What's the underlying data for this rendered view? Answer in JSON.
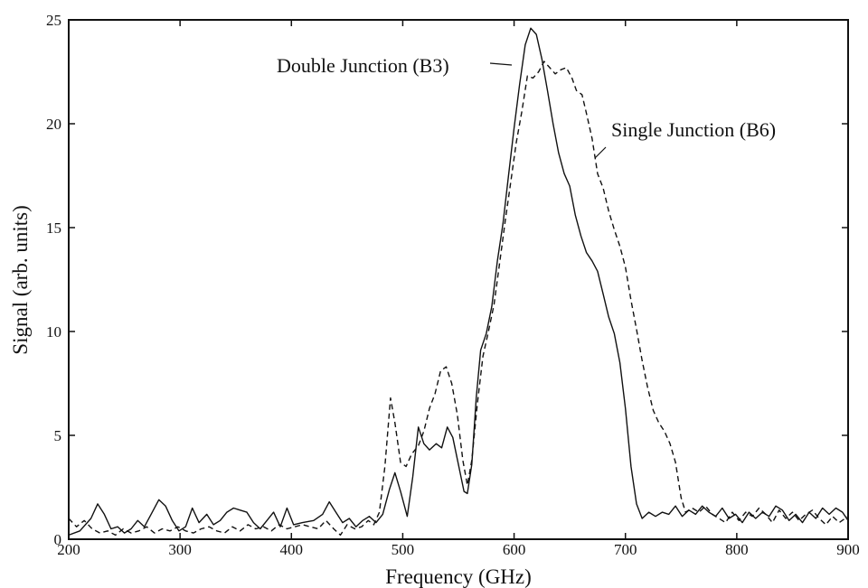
{
  "chart_data": {
    "type": "line",
    "xlabel": "Frequency (GHz)",
    "ylabel": "Signal (arb. units)",
    "xlim": [
      200,
      900
    ],
    "ylim": [
      0,
      25
    ],
    "xticks": [
      200,
      300,
      400,
      500,
      600,
      700,
      800,
      900
    ],
    "yticks": [
      0,
      5,
      10,
      15,
      20,
      25
    ],
    "grid": false,
    "legend": "none",
    "annotations": [
      {
        "text": "Double Junction (B3)",
        "series": 0
      },
      {
        "text": "Single Junction (B6)",
        "series": 1
      }
    ],
    "series": [
      {
        "name": "Double Junction (B3)",
        "style": "solid",
        "color": "#111111",
        "points": [
          [
            200,
            0.2
          ],
          [
            210,
            0.4
          ],
          [
            220,
            1.0
          ],
          [
            226,
            1.7
          ],
          [
            232,
            1.2
          ],
          [
            238,
            0.5
          ],
          [
            244,
            0.6
          ],
          [
            250,
            0.3
          ],
          [
            256,
            0.5
          ],
          [
            262,
            0.9
          ],
          [
            268,
            0.6
          ],
          [
            274,
            1.2
          ],
          [
            281,
            1.9
          ],
          [
            287,
            1.6
          ],
          [
            293,
            0.9
          ],
          [
            299,
            0.4
          ],
          [
            305,
            0.6
          ],
          [
            311,
            1.5
          ],
          [
            317,
            0.8
          ],
          [
            324,
            1.2
          ],
          [
            330,
            0.7
          ],
          [
            336,
            0.9
          ],
          [
            342,
            1.3
          ],
          [
            348,
            1.5
          ],
          [
            354,
            1.4
          ],
          [
            360,
            1.3
          ],
          [
            366,
            0.8
          ],
          [
            372,
            0.5
          ],
          [
            378,
            0.9
          ],
          [
            384,
            1.3
          ],
          [
            390,
            0.6
          ],
          [
            396,
            1.5
          ],
          [
            402,
            0.7
          ],
          [
            410,
            0.8
          ],
          [
            420,
            0.9
          ],
          [
            428,
            1.2
          ],
          [
            434,
            1.8
          ],
          [
            440,
            1.3
          ],
          [
            446,
            0.8
          ],
          [
            452,
            1.0
          ],
          [
            458,
            0.6
          ],
          [
            464,
            0.9
          ],
          [
            470,
            1.1
          ],
          [
            476,
            0.8
          ],
          [
            482,
            1.2
          ],
          [
            488,
            2.4
          ],
          [
            493,
            3.2
          ],
          [
            498,
            2.3
          ],
          [
            504,
            1.1
          ],
          [
            509,
            3.0
          ],
          [
            514,
            5.4
          ],
          [
            519,
            4.6
          ],
          [
            524,
            4.3
          ],
          [
            530,
            4.6
          ],
          [
            535,
            4.4
          ],
          [
            540,
            5.4
          ],
          [
            545,
            4.9
          ],
          [
            550,
            3.6
          ],
          [
            555,
            2.3
          ],
          [
            558,
            2.2
          ],
          [
            562,
            3.6
          ],
          [
            566,
            6.8
          ],
          [
            570,
            9.1
          ],
          [
            575,
            9.9
          ],
          [
            580,
            11.2
          ],
          [
            585,
            13.4
          ],
          [
            590,
            15.2
          ],
          [
            595,
            17.5
          ],
          [
            600,
            19.8
          ],
          [
            605,
            21.9
          ],
          [
            610,
            23.8
          ],
          [
            615,
            24.6
          ],
          [
            620,
            24.3
          ],
          [
            625,
            23.1
          ],
          [
            630,
            21.6
          ],
          [
            635,
            20.0
          ],
          [
            640,
            18.6
          ],
          [
            645,
            17.6
          ],
          [
            650,
            17.0
          ],
          [
            655,
            15.6
          ],
          [
            660,
            14.6
          ],
          [
            665,
            13.8
          ],
          [
            670,
            13.4
          ],
          [
            675,
            12.9
          ],
          [
            680,
            11.8
          ],
          [
            685,
            10.7
          ],
          [
            690,
            9.9
          ],
          [
            695,
            8.5
          ],
          [
            700,
            6.3
          ],
          [
            705,
            3.5
          ],
          [
            710,
            1.7
          ],
          [
            715,
            1.0
          ],
          [
            721,
            1.3
          ],
          [
            727,
            1.1
          ],
          [
            733,
            1.3
          ],
          [
            739,
            1.2
          ],
          [
            745,
            1.6
          ],
          [
            751,
            1.1
          ],
          [
            757,
            1.4
          ],
          [
            763,
            1.2
          ],
          [
            769,
            1.6
          ],
          [
            775,
            1.3
          ],
          [
            781,
            1.1
          ],
          [
            787,
            1.5
          ],
          [
            793,
            1.0
          ],
          [
            799,
            1.2
          ],
          [
            805,
            0.8
          ],
          [
            811,
            1.3
          ],
          [
            817,
            1.0
          ],
          [
            823,
            1.3
          ],
          [
            829,
            1.1
          ],
          [
            835,
            1.6
          ],
          [
            841,
            1.4
          ],
          [
            847,
            0.9
          ],
          [
            853,
            1.2
          ],
          [
            859,
            0.8
          ],
          [
            865,
            1.3
          ],
          [
            871,
            1.0
          ],
          [
            877,
            1.5
          ],
          [
            883,
            1.2
          ],
          [
            889,
            1.5
          ],
          [
            895,
            1.3
          ],
          [
            900,
            0.9
          ]
        ]
      },
      {
        "name": "Single Junction (B6)",
        "style": "dashed",
        "color": "#111111",
        "points": [
          [
            200,
            1.0
          ],
          [
            207,
            0.6
          ],
          [
            214,
            0.9
          ],
          [
            221,
            0.5
          ],
          [
            228,
            0.3
          ],
          [
            235,
            0.4
          ],
          [
            242,
            0.2
          ],
          [
            249,
            0.5
          ],
          [
            256,
            0.3
          ],
          [
            263,
            0.4
          ],
          [
            270,
            0.6
          ],
          [
            277,
            0.3
          ],
          [
            284,
            0.5
          ],
          [
            291,
            0.4
          ],
          [
            298,
            0.6
          ],
          [
            305,
            0.4
          ],
          [
            312,
            0.3
          ],
          [
            319,
            0.5
          ],
          [
            326,
            0.6
          ],
          [
            333,
            0.4
          ],
          [
            340,
            0.3
          ],
          [
            347,
            0.6
          ],
          [
            354,
            0.4
          ],
          [
            361,
            0.7
          ],
          [
            368,
            0.5
          ],
          [
            375,
            0.6
          ],
          [
            382,
            0.4
          ],
          [
            389,
            0.7
          ],
          [
            396,
            0.5
          ],
          [
            403,
            0.6
          ],
          [
            410,
            0.7
          ],
          [
            417,
            0.6
          ],
          [
            424,
            0.5
          ],
          [
            431,
            0.9
          ],
          [
            438,
            0.5
          ],
          [
            444,
            0.2
          ],
          [
            450,
            0.7
          ],
          [
            457,
            0.5
          ],
          [
            463,
            0.6
          ],
          [
            469,
            0.9
          ],
          [
            474,
            0.7
          ],
          [
            479,
            1.3
          ],
          [
            484,
            3.5
          ],
          [
            489,
            6.8
          ],
          [
            493,
            5.6
          ],
          [
            498,
            3.7
          ],
          [
            503,
            3.5
          ],
          [
            508,
            4.1
          ],
          [
            514,
            4.5
          ],
          [
            519,
            5.2
          ],
          [
            524,
            6.3
          ],
          [
            529,
            7.0
          ],
          [
            534,
            8.1
          ],
          [
            539,
            8.3
          ],
          [
            544,
            7.5
          ],
          [
            549,
            6.0
          ],
          [
            554,
            3.8
          ],
          [
            558,
            2.6
          ],
          [
            562,
            3.8
          ],
          [
            567,
            6.5
          ],
          [
            572,
            8.8
          ],
          [
            577,
            10.0
          ],
          [
            582,
            11.3
          ],
          [
            587,
            13.3
          ],
          [
            592,
            15.3
          ],
          [
            597,
            17.2
          ],
          [
            602,
            19.1
          ],
          [
            607,
            20.6
          ],
          [
            612,
            22.3
          ],
          [
            617,
            22.2
          ],
          [
            622,
            22.5
          ],
          [
            627,
            23.0
          ],
          [
            632,
            22.7
          ],
          [
            637,
            22.4
          ],
          [
            642,
            22.6
          ],
          [
            647,
            22.7
          ],
          [
            652,
            22.2
          ],
          [
            656,
            21.6
          ],
          [
            661,
            21.4
          ],
          [
            665,
            20.5
          ],
          [
            670,
            19.3
          ],
          [
            675,
            17.6
          ],
          [
            680,
            16.9
          ],
          [
            685,
            15.8
          ],
          [
            690,
            14.9
          ],
          [
            695,
            14.1
          ],
          [
            700,
            13.1
          ],
          [
            705,
            11.5
          ],
          [
            710,
            10.1
          ],
          [
            715,
            8.6
          ],
          [
            720,
            7.3
          ],
          [
            725,
            6.2
          ],
          [
            730,
            5.6
          ],
          [
            735,
            5.2
          ],
          [
            740,
            4.6
          ],
          [
            745,
            3.7
          ],
          [
            750,
            2.0
          ],
          [
            754,
            1.3
          ],
          [
            760,
            1.5
          ],
          [
            766,
            1.3
          ],
          [
            772,
            1.6
          ],
          [
            778,
            1.2
          ],
          [
            784,
            1.0
          ],
          [
            790,
            0.8
          ],
          [
            796,
            1.3
          ],
          [
            802,
            0.9
          ],
          [
            808,
            1.3
          ],
          [
            814,
            1.1
          ],
          [
            820,
            1.5
          ],
          [
            826,
            1.2
          ],
          [
            832,
            0.8
          ],
          [
            838,
            1.4
          ],
          [
            844,
            1.0
          ],
          [
            850,
            1.3
          ],
          [
            856,
            0.9
          ],
          [
            862,
            1.2
          ],
          [
            868,
            1.4
          ],
          [
            874,
            1.0
          ],
          [
            880,
            0.7
          ],
          [
            886,
            1.1
          ],
          [
            892,
            0.8
          ],
          [
            900,
            1.1
          ]
        ]
      }
    ]
  }
}
